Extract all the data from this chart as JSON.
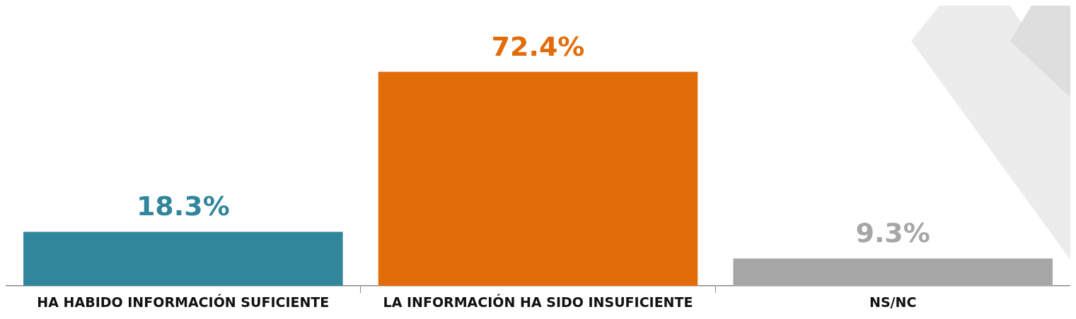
{
  "chart_data": {
    "type": "bar",
    "categories": [
      "HA HABIDO INFORMACIÓN SUFICIENTE",
      "LA INFORMACIÓN HA SIDO INSUFICIENTE",
      "NS/NC"
    ],
    "values": [
      18.3,
      72.4,
      9.3
    ],
    "colors": [
      "#31869b",
      "#e36c0a",
      "#a6a6a6"
    ],
    "value_labels": [
      "18.3%",
      "72.4%",
      "9.3%"
    ],
    "grid": false,
    "legend": false,
    "tick_labels": "x"
  }
}
